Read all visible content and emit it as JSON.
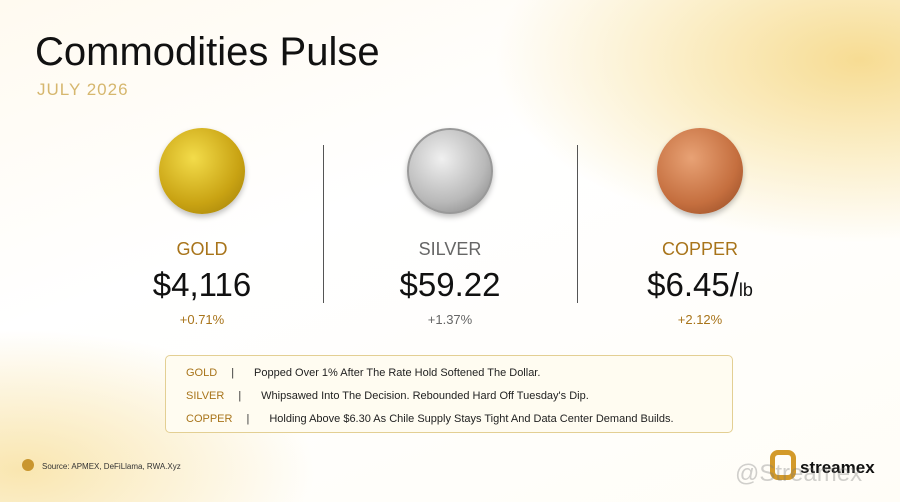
{
  "header": {
    "title": "Commodities Pulse",
    "subtitle": "JULY  2026"
  },
  "commodities": [
    {
      "name": "GOLD",
      "price": "$4,116",
      "change": "+0.71%"
    },
    {
      "name": "SILVER",
      "price": "$59.22",
      "change": "+1.37%"
    },
    {
      "name": "COPPER",
      "price": "$6.45/",
      "unit": "lb",
      "change": "+2.12%"
    }
  ],
  "notes": [
    {
      "label": "GOLD",
      "text": "Popped Over 1% After The Rate Hold Softened The Dollar."
    },
    {
      "label": "SILVER",
      "text": "Whipsawed Into The Decision. Rebounded Hard Off Tuesday's Dip."
    },
    {
      "label": "COPPER",
      "text": "Holding Above $6.30 As Chile Supply Stays Tight And Data Center Demand Builds."
    }
  ],
  "footer": {
    "source": "Source: APMEX, DeFiLlama, RWA.Xyz",
    "logo": "streamex",
    "watermark": "@Streamex"
  }
}
